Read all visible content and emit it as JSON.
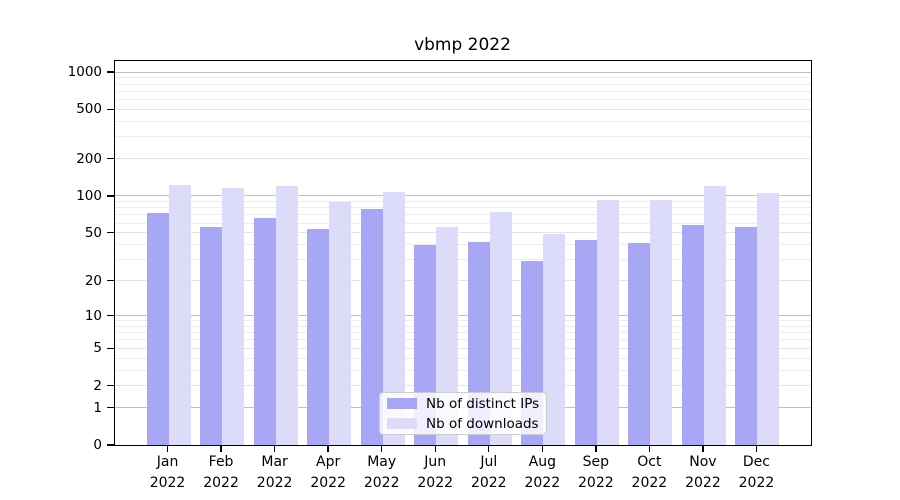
{
  "title": "vbmp 2022",
  "legend": {
    "items": [
      {
        "label": "Nb of distinct IPs",
        "color_key": "ips"
      },
      {
        "label": "Nb of downloads",
        "color_key": "downloads"
      }
    ]
  },
  "colors": {
    "ips": "#a7a7f5",
    "downloads": "#dcdcfa",
    "grid_major": "#c0c0c0",
    "grid_light": "#e3e3e3",
    "grid_minor": "#ededed",
    "axis": "#000000"
  },
  "y_axis": {
    "ticks": [
      {
        "label": "1000",
        "value": 1000
      },
      {
        "label": "500",
        "value": 500
      },
      {
        "label": "200",
        "value": 200
      },
      {
        "label": "100",
        "value": 100
      },
      {
        "label": "50",
        "value": 50
      },
      {
        "label": "20",
        "value": 20
      },
      {
        "label": "10",
        "value": 10
      },
      {
        "label": "5",
        "value": 5
      },
      {
        "label": "2",
        "value": 2
      },
      {
        "label": "1",
        "value": 1
      },
      {
        "label": "0",
        "value": 0
      }
    ]
  },
  "x_axis": {
    "labels": [
      {
        "month": "Jan",
        "year": "2022"
      },
      {
        "month": "Feb",
        "year": "2022"
      },
      {
        "month": "Mar",
        "year": "2022"
      },
      {
        "month": "Apr",
        "year": "2022"
      },
      {
        "month": "May",
        "year": "2022"
      },
      {
        "month": "Jun",
        "year": "2022"
      },
      {
        "month": "Jul",
        "year": "2022"
      },
      {
        "month": "Aug",
        "year": "2022"
      },
      {
        "month": "Sep",
        "year": "2022"
      },
      {
        "month": "Oct",
        "year": "2022"
      },
      {
        "month": "Nov",
        "year": "2022"
      },
      {
        "month": "Dec",
        "year": "2022"
      }
    ]
  },
  "chart_data": {
    "type": "bar",
    "title": "vbmp 2022",
    "categories": [
      "Jan 2022",
      "Feb 2022",
      "Mar 2022",
      "Apr 2022",
      "May 2022",
      "Jun 2022",
      "Jul 2022",
      "Aug 2022",
      "Sep 2022",
      "Oct 2022",
      "Nov 2022",
      "Dec 2022"
    ],
    "series": [
      {
        "name": "Nb of distinct IPs",
        "color_key": "ips",
        "values": [
          72,
          56,
          66,
          54,
          79,
          40,
          42,
          29,
          44,
          41,
          58,
          56
        ]
      },
      {
        "name": "Nb of downloads",
        "color_key": "downloads",
        "values": [
          122,
          116,
          120,
          89,
          107,
          56,
          74,
          49,
          93,
          92,
          120,
          105
        ]
      }
    ],
    "xlabel": "",
    "ylabel": "",
    "yscale": "log10(value+1)",
    "y_tick_values": [
      0,
      1,
      2,
      5,
      10,
      20,
      50,
      100,
      200,
      500,
      1000
    ],
    "ylim": [
      0,
      1265
    ],
    "grid": true,
    "legend_position": "lower center"
  }
}
